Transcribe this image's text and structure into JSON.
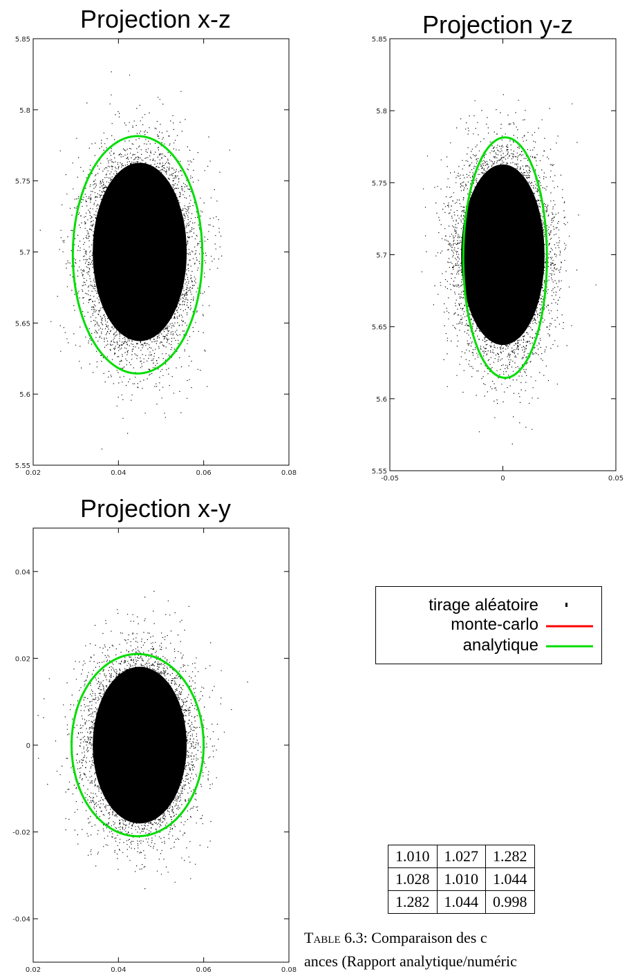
{
  "chart_data": [
    {
      "type": "scatter",
      "title": "Projection x-z",
      "xlim": [
        0.02,
        0.08
      ],
      "ylim": [
        5.55,
        5.85
      ],
      "xticks": [
        "0.02",
        "0.04",
        "0.06",
        "0.08"
      ],
      "yticks": [
        "5.55",
        "5.6",
        "5.65",
        "5.7",
        "5.75",
        "5.8",
        "5.85"
      ],
      "scatter_center": [
        0.045,
        5.7
      ],
      "scatter_sigma": [
        0.0058,
        0.033
      ],
      "series": [
        {
          "name": "monte-carlo",
          "type": "ellipse",
          "center": [
            0.0445,
            5.698
          ],
          "semi_axes": [
            0.0152,
            0.0835
          ]
        },
        {
          "name": "analytique",
          "type": "ellipse",
          "center": [
            0.0445,
            5.698
          ],
          "semi_axes": [
            0.0152,
            0.0835
          ]
        }
      ]
    },
    {
      "type": "scatter",
      "title": "Projection y-z",
      "xlim": [
        -0.05,
        0.05
      ],
      "ylim": [
        5.55,
        5.85
      ],
      "xticks": [
        "-0.05",
        "0",
        "0.05"
      ],
      "yticks": [
        "5.55",
        "5.6",
        "5.65",
        "5.7",
        "5.75",
        "5.8",
        "5.85"
      ],
      "scatter_center": [
        0.0,
        5.7
      ],
      "scatter_sigma": [
        0.0097,
        0.033
      ],
      "series": [
        {
          "name": "monte-carlo",
          "type": "ellipse",
          "center": [
            0.001,
            5.698
          ],
          "semi_axes": [
            0.0185,
            0.0835
          ]
        },
        {
          "name": "analytique",
          "type": "ellipse",
          "center": [
            0.001,
            5.698
          ],
          "semi_axes": [
            0.0185,
            0.0835
          ]
        }
      ]
    },
    {
      "type": "scatter",
      "title": "Projection x-y",
      "xlim": [
        0.02,
        0.08
      ],
      "ylim": [
        -0.05,
        0.05
      ],
      "xticks": [
        "0.02",
        "0.04",
        "0.06",
        "0.08"
      ],
      "yticks": [
        "-0.04",
        "-0.02",
        "0",
        "0.02",
        "0.04"
      ],
      "scatter_center": [
        0.045,
        0.0
      ],
      "scatter_sigma": [
        0.0058,
        0.0095
      ],
      "series": [
        {
          "name": "monte-carlo",
          "type": "ellipse",
          "center": [
            0.0445,
            0.0
          ],
          "semi_axes": [
            0.0155,
            0.021
          ]
        },
        {
          "name": "analytique",
          "type": "ellipse",
          "center": [
            0.0445,
            0.0
          ],
          "semi_axes": [
            0.0155,
            0.021
          ]
        }
      ]
    }
  ],
  "legend": [
    {
      "label": "tirage aléatoire",
      "symbol": "dot",
      "color": "#000000"
    },
    {
      "label": "monte-carlo",
      "symbol": "line",
      "color": "#ff0000"
    },
    {
      "label": "analytique",
      "symbol": "line",
      "color": "#00dd00"
    }
  ],
  "table": {
    "rows": [
      [
        "1.010",
        "1.027",
        "1.282"
      ],
      [
        "1.028",
        "1.010",
        "1.044"
      ],
      [
        "1.282",
        "1.044",
        "0.998"
      ]
    ]
  },
  "caption": {
    "prefix": "Table",
    "line1": "6.3: Comparaison des c",
    "line2": "ances (Rapport analytique/numéric"
  }
}
